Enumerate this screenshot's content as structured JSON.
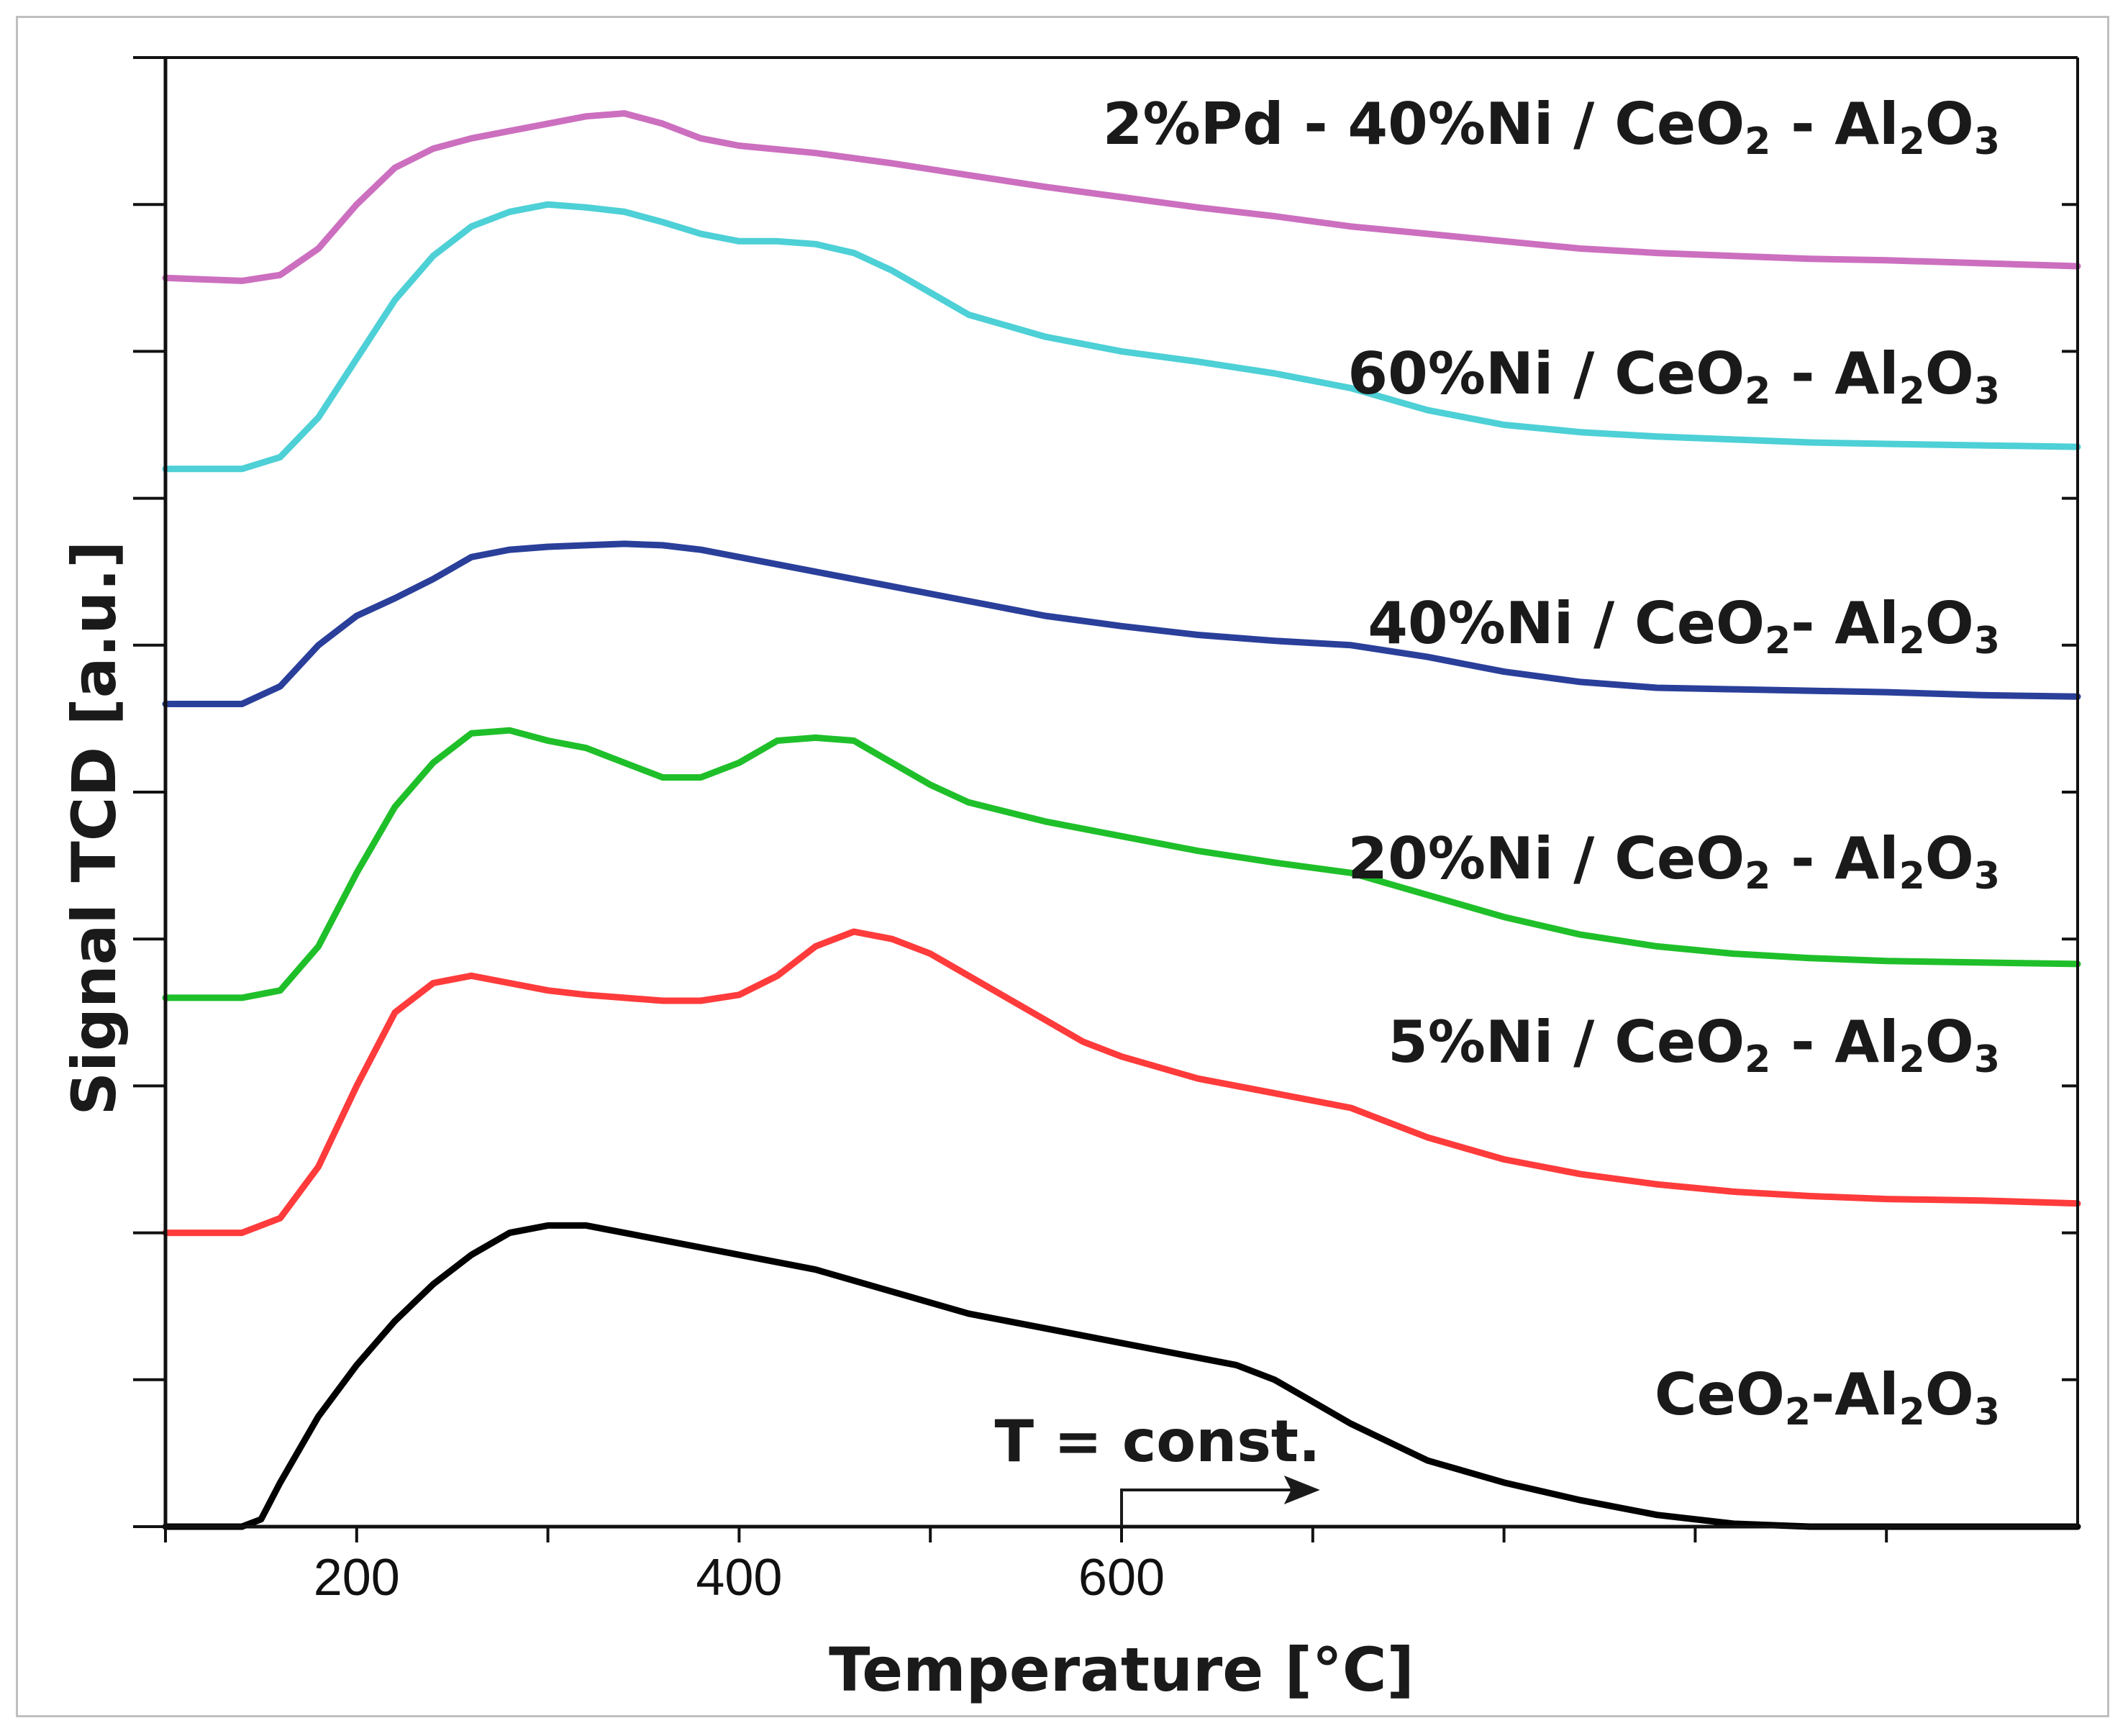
{
  "chart_data": {
    "type": "line",
    "title": "",
    "xlabel": "Temperature [°C]",
    "ylabel": "Signal TCD [a.u.]",
    "xlim": [
      100,
      1100
    ],
    "ylim": [
      0,
      10
    ],
    "x_ticks": [
      200,
      400,
      600
    ],
    "x_minor_ticks": [
      100,
      200,
      300,
      400,
      500,
      600,
      700,
      800,
      900,
      1000
    ],
    "y_ticks": [
      0,
      1,
      2,
      3,
      4,
      5,
      6,
      7,
      8,
      9,
      10
    ],
    "grid": false,
    "legend": "inline labels at right",
    "colors": {
      "ceo2_al2o3": "#000000",
      "ni5": "#ff3b3b",
      "ni20": "#1fbf2a",
      "ni40": "#2a3f9a",
      "ni60": "#4dd0d6",
      "pd2_ni40": "#cc6fbf",
      "axis": "#111111"
    },
    "series": [
      {
        "id": "ceo2_al2o3",
        "name": "CeO2-Al2O3",
        "label_parts": [
          "CeO",
          "2",
          "-Al",
          "2",
          "O",
          "3"
        ],
        "x": [
          100,
          140,
          150,
          160,
          180,
          200,
          220,
          240,
          260,
          280,
          300,
          320,
          340,
          360,
          380,
          400,
          440,
          480,
          520,
          560,
          600,
          640,
          660,
          680,
          700,
          720,
          760,
          800,
          840,
          880,
          920,
          960,
          1000,
          1050,
          1100
        ],
        "values": [
          0.0,
          0.0,
          0.05,
          0.3,
          0.75,
          1.1,
          1.4,
          1.65,
          1.85,
          2.0,
          2.05,
          2.05,
          2.0,
          1.95,
          1.9,
          1.85,
          1.75,
          1.6,
          1.45,
          1.35,
          1.25,
          1.15,
          1.1,
          1.0,
          0.85,
          0.7,
          0.45,
          0.3,
          0.18,
          0.08,
          0.02,
          0.0,
          0.0,
          0.0,
          0.0
        ]
      },
      {
        "id": "ni5",
        "name": "5%Ni / CeO2 - Al2O3",
        "label_parts": [
          "5%Ni / CeO",
          "2",
          " - Al",
          "2",
          "O",
          "3"
        ],
        "x": [
          100,
          140,
          160,
          180,
          200,
          220,
          240,
          260,
          280,
          300,
          320,
          340,
          360,
          380,
          400,
          420,
          440,
          460,
          480,
          500,
          520,
          540,
          560,
          580,
          600,
          640,
          680,
          720,
          760,
          800,
          840,
          880,
          920,
          960,
          1000,
          1050,
          1100
        ],
        "values": [
          2.0,
          2.0,
          2.1,
          2.45,
          3.0,
          3.5,
          3.7,
          3.75,
          3.7,
          3.65,
          3.62,
          3.6,
          3.58,
          3.58,
          3.62,
          3.75,
          3.95,
          4.05,
          4.0,
          3.9,
          3.75,
          3.6,
          3.45,
          3.3,
          3.2,
          3.05,
          2.95,
          2.85,
          2.65,
          2.5,
          2.4,
          2.33,
          2.28,
          2.25,
          2.23,
          2.22,
          2.2
        ]
      },
      {
        "id": "ni20",
        "name": "20%Ni / CeO2 - Al2O3",
        "label_parts": [
          "20%Ni / CeO",
          "2",
          " - Al",
          "2",
          "O",
          "3"
        ],
        "x": [
          100,
          140,
          160,
          180,
          200,
          220,
          240,
          260,
          280,
          300,
          320,
          340,
          360,
          380,
          400,
          420,
          440,
          460,
          480,
          500,
          520,
          560,
          600,
          640,
          680,
          720,
          760,
          800,
          840,
          880,
          920,
          960,
          1000,
          1050,
          1100
        ],
        "values": [
          3.6,
          3.6,
          3.65,
          3.95,
          4.45,
          4.9,
          5.2,
          5.4,
          5.42,
          5.35,
          5.3,
          5.2,
          5.1,
          5.1,
          5.2,
          5.35,
          5.37,
          5.35,
          5.2,
          5.05,
          4.93,
          4.8,
          4.7,
          4.6,
          4.52,
          4.45,
          4.3,
          4.15,
          4.03,
          3.95,
          3.9,
          3.87,
          3.85,
          3.84,
          3.83
        ]
      },
      {
        "id": "ni40",
        "name": "40%Ni / CeO2- Al2O3",
        "label_parts": [
          "40%Ni / CeO",
          "2",
          "- Al",
          "2",
          "O",
          "3"
        ],
        "x": [
          100,
          140,
          160,
          180,
          200,
          220,
          240,
          260,
          280,
          300,
          320,
          340,
          360,
          380,
          400,
          440,
          480,
          520,
          560,
          600,
          640,
          680,
          720,
          760,
          800,
          840,
          880,
          920,
          960,
          1000,
          1050,
          1100
        ],
        "values": [
          5.6,
          5.6,
          5.72,
          6.0,
          6.2,
          6.32,
          6.45,
          6.6,
          6.65,
          6.67,
          6.68,
          6.69,
          6.68,
          6.65,
          6.6,
          6.5,
          6.4,
          6.3,
          6.2,
          6.13,
          6.07,
          6.03,
          6.0,
          5.92,
          5.82,
          5.75,
          5.71,
          5.7,
          5.69,
          5.68,
          5.66,
          5.65
        ]
      },
      {
        "id": "ni60",
        "name": "60%Ni / CeO2 - Al2O3",
        "label_parts": [
          "60%Ni / CeO",
          "2",
          " - Al",
          "2",
          "O",
          "3"
        ],
        "x": [
          100,
          140,
          160,
          180,
          200,
          220,
          240,
          260,
          280,
          300,
          320,
          340,
          360,
          380,
          400,
          420,
          440,
          460,
          480,
          500,
          520,
          560,
          600,
          640,
          680,
          720,
          760,
          800,
          840,
          880,
          920,
          960,
          1000,
          1050,
          1100
        ],
        "values": [
          7.2,
          7.2,
          7.28,
          7.55,
          7.95,
          8.35,
          8.65,
          8.85,
          8.95,
          9.0,
          8.98,
          8.95,
          8.88,
          8.8,
          8.75,
          8.75,
          8.73,
          8.67,
          8.55,
          8.4,
          8.25,
          8.1,
          8.0,
          7.93,
          7.85,
          7.75,
          7.6,
          7.5,
          7.45,
          7.42,
          7.4,
          7.38,
          7.37,
          7.36,
          7.35
        ]
      },
      {
        "id": "pd2_ni40",
        "name": "2%Pd - 40%Ni / CeO2 - Al2O3",
        "label_parts": [
          "2%Pd - 40%Ni / CeO",
          "2",
          " - Al",
          "2",
          "O",
          "3"
        ],
        "x": [
          100,
          140,
          160,
          180,
          200,
          220,
          240,
          260,
          280,
          300,
          320,
          340,
          360,
          380,
          400,
          440,
          480,
          520,
          560,
          600,
          640,
          680,
          720,
          760,
          800,
          840,
          880,
          920,
          960,
          1000,
          1050,
          1100
        ],
        "values": [
          8.5,
          8.48,
          8.52,
          8.7,
          9.0,
          9.25,
          9.38,
          9.45,
          9.5,
          9.55,
          9.6,
          9.62,
          9.55,
          9.45,
          9.4,
          9.35,
          9.28,
          9.2,
          9.12,
          9.05,
          8.98,
          8.92,
          8.85,
          8.8,
          8.75,
          8.7,
          8.67,
          8.65,
          8.63,
          8.62,
          8.6,
          8.58
        ]
      }
    ],
    "annotations": [
      {
        "id": "t-const",
        "text": "T = const.",
        "arrow_from": [
          600,
          0.0
        ],
        "arrow_corner": [
          600,
          0.25
        ],
        "arrow_to": [
          700,
          0.25
        ]
      }
    ]
  }
}
